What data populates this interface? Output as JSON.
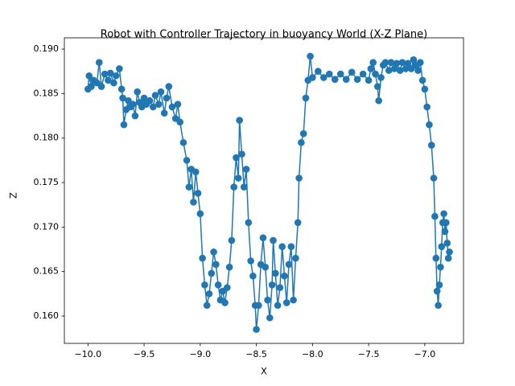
{
  "chart_data": {
    "type": "line",
    "title": "Robot with Controller Trajectory in buoyancy World (X-Z Plane)",
    "x_label": "X",
    "y_label": "Z",
    "color": "#1f77b4",
    "marker": "o",
    "x": [
      -10.0,
      -9.99,
      -9.97,
      -9.95,
      -9.92,
      -9.9,
      -9.88,
      -9.85,
      -9.82,
      -9.8,
      -9.77,
      -9.75,
      -9.72,
      -9.7,
      -9.69,
      -9.68,
      -9.66,
      -9.64,
      -9.62,
      -9.6,
      -9.58,
      -9.56,
      -9.54,
      -9.52,
      -9.5,
      -9.48,
      -9.45,
      -9.42,
      -9.4,
      -9.37,
      -9.35,
      -9.32,
      -9.3,
      -9.28,
      -9.25,
      -9.22,
      -9.2,
      -9.18,
      -9.15,
      -9.12,
      -9.1,
      -9.08,
      -9.06,
      -9.04,
      -9.02,
      -9.0,
      -8.98,
      -8.96,
      -8.94,
      -8.92,
      -8.9,
      -8.88,
      -8.86,
      -8.84,
      -8.82,
      -8.8,
      -8.78,
      -8.76,
      -8.74,
      -8.72,
      -8.7,
      -8.68,
      -8.66,
      -8.65,
      -8.63,
      -8.61,
      -8.59,
      -8.57,
      -8.55,
      -8.53,
      -8.51,
      -8.5,
      -8.48,
      -8.46,
      -8.44,
      -8.42,
      -8.4,
      -8.38,
      -8.36,
      -8.35,
      -8.33,
      -8.31,
      -8.29,
      -8.27,
      -8.25,
      -8.23,
      -8.21,
      -8.19,
      -8.17,
      -8.15,
      -8.13,
      -8.12,
      -8.1,
      -8.08,
      -8.06,
      -8.04,
      -8.02,
      -8.0,
      -7.95,
      -7.9,
      -7.85,
      -7.8,
      -7.75,
      -7.7,
      -7.65,
      -7.6,
      -7.55,
      -7.5,
      -7.48,
      -7.46,
      -7.44,
      -7.42,
      -7.41,
      -7.39,
      -7.37,
      -7.35,
      -7.32,
      -7.3,
      -7.27,
      -7.25,
      -7.22,
      -7.2,
      -7.17,
      -7.15,
      -7.12,
      -7.1,
      -7.08,
      -7.06,
      -7.04,
      -7.02,
      -7.0,
      -6.98,
      -6.96,
      -6.94,
      -6.92,
      -6.91,
      -6.9,
      -6.89,
      -6.88,
      -6.87,
      -6.86,
      -6.85,
      -6.84,
      -6.83,
      -6.82,
      -6.81,
      -6.8,
      -6.79,
      -6.78
    ],
    "values": [
      0.1855,
      0.187,
      0.1858,
      0.1865,
      0.1862,
      0.1885,
      0.1858,
      0.1872,
      0.1865,
      0.1873,
      0.1862,
      0.187,
      0.1878,
      0.1855,
      0.1845,
      0.1815,
      0.1832,
      0.1842,
      0.1835,
      0.1838,
      0.1825,
      0.1852,
      0.184,
      0.1835,
      0.1845,
      0.1838,
      0.1842,
      0.1835,
      0.1848,
      0.1838,
      0.1852,
      0.1828,
      0.1845,
      0.1858,
      0.1835,
      0.1822,
      0.1838,
      0.1818,
      0.1795,
      0.1775,
      0.1745,
      0.1765,
      0.1728,
      0.1762,
      0.1738,
      0.1715,
      0.1665,
      0.1635,
      0.1612,
      0.1625,
      0.1648,
      0.1672,
      0.1658,
      0.1635,
      0.1618,
      0.1628,
      0.1615,
      0.1632,
      0.1655,
      0.1685,
      0.1745,
      0.1778,
      0.1755,
      0.182,
      0.1782,
      0.1745,
      0.1765,
      0.1705,
      0.1662,
      0.1645,
      0.1612,
      0.1585,
      0.1612,
      0.1658,
      0.1688,
      0.1655,
      0.1618,
      0.1598,
      0.1635,
      0.1685,
      0.1648,
      0.1612,
      0.1632,
      0.1678,
      0.1645,
      0.1615,
      0.1658,
      0.1678,
      0.1618,
      0.1665,
      0.1705,
      0.1755,
      0.1795,
      0.1805,
      0.1845,
      0.1865,
      0.1892,
      0.1868,
      0.1875,
      0.1868,
      0.1872,
      0.1866,
      0.1872,
      0.1866,
      0.1874,
      0.1866,
      0.1872,
      0.1865,
      0.1878,
      0.1885,
      0.1872,
      0.1858,
      0.1842,
      0.1868,
      0.1882,
      0.1885,
      0.1876,
      0.1885,
      0.1878,
      0.1884,
      0.1876,
      0.1885,
      0.1878,
      0.1884,
      0.1878,
      0.1888,
      0.1882,
      0.1876,
      0.1885,
      0.1865,
      0.1855,
      0.1835,
      0.1815,
      0.1792,
      0.1755,
      0.1712,
      0.1665,
      0.1628,
      0.1612,
      0.1635,
      0.1655,
      0.1678,
      0.1705,
      0.1715,
      0.1695,
      0.1705,
      0.1682,
      0.1665,
      0.1672
    ],
    "xlim": [
      -10.21,
      -6.655
    ],
    "xticks": [
      {
        "value": -10.0,
        "label": "−10.0"
      },
      {
        "value": -9.5,
        "label": "−9.5"
      },
      {
        "value": -9.0,
        "label": "−9.0"
      },
      {
        "value": -8.5,
        "label": "−8.5"
      },
      {
        "value": -8.0,
        "label": "−8.0"
      },
      {
        "value": -7.5,
        "label": "−7.5"
      },
      {
        "value": -7.0,
        "label": "−7.0"
      }
    ],
    "ylim": [
      0.15693,
      0.19127
    ],
    "yticks": [
      {
        "value": 0.16,
        "label": "0.160"
      },
      {
        "value": 0.165,
        "label": "0.165"
      },
      {
        "value": 0.17,
        "label": "0.170"
      },
      {
        "value": 0.175,
        "label": "0.175"
      },
      {
        "value": 0.18,
        "label": "0.180"
      },
      {
        "value": 0.185,
        "label": "0.185"
      },
      {
        "value": 0.19,
        "label": "0.190"
      }
    ],
    "grid": false
  }
}
